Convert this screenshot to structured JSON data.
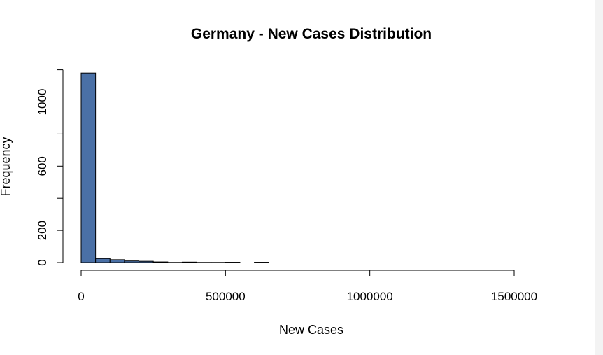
{
  "chart_data": {
    "type": "bar",
    "title": "Germany - New Cases Distribution",
    "xlabel": "New Cases",
    "ylabel": "Frequency",
    "bin_width": 50000,
    "bins": [
      {
        "x0": 0,
        "x1": 50000,
        "count": 1180
      },
      {
        "x0": 50000,
        "x1": 100000,
        "count": 25
      },
      {
        "x0": 100000,
        "x1": 150000,
        "count": 18
      },
      {
        "x0": 150000,
        "x1": 200000,
        "count": 10
      },
      {
        "x0": 200000,
        "x1": 250000,
        "count": 8
      },
      {
        "x0": 250000,
        "x1": 300000,
        "count": 4
      },
      {
        "x0": 300000,
        "x1": 350000,
        "count": 1
      },
      {
        "x0": 350000,
        "x1": 400000,
        "count": 3
      },
      {
        "x0": 400000,
        "x1": 450000,
        "count": 1
      },
      {
        "x0": 450000,
        "x1": 500000,
        "count": 1
      },
      {
        "x0": 500000,
        "x1": 550000,
        "count": 2
      },
      {
        "x0": 550000,
        "x1": 600000,
        "count": 0
      },
      {
        "x0": 600000,
        "x1": 650000,
        "count": 2
      },
      {
        "x0": 650000,
        "x1": 1550000,
        "count": 0
      }
    ],
    "x_ticks": [
      0,
      500000,
      1000000,
      1500000
    ],
    "x_tick_labels": [
      "0",
      "500000",
      "1000000",
      "1500000"
    ],
    "y_ticks": [
      0,
      200,
      600,
      1000
    ],
    "y_minor_ticks": [
      400,
      800,
      1200
    ],
    "y_tick_labels": [
      "0",
      "200",
      "600",
      "1000"
    ],
    "xlim": [
      0,
      1600000
    ],
    "ylim": [
      0,
      1200
    ],
    "grid": false,
    "legend": "none",
    "colors": {
      "bar_fill": "#4a70a6",
      "bar_edge": "#000000",
      "background": "#ffffff"
    }
  }
}
